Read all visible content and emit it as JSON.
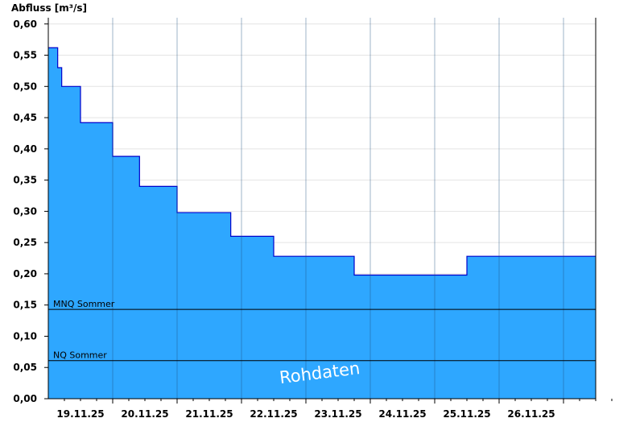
{
  "chart_data": {
    "type": "area",
    "title": "",
    "ylabel": "Abfluss [m³/s]",
    "xlabel": "",
    "ylim": [
      0,
      0.61
    ],
    "xlim": [
      "18.11.25 12:00",
      "26.11.25 24:00"
    ],
    "yticks": [
      "0,00",
      "0,05",
      "0,10",
      "0,15",
      "0,20",
      "0,25",
      "0,30",
      "0,35",
      "0,40",
      "0,45",
      "0,50",
      "0,55",
      "0,60"
    ],
    "ytick_values": [
      0,
      0.05,
      0.1,
      0.15,
      0.2,
      0.25,
      0.3,
      0.35,
      0.4,
      0.45,
      0.5,
      0.55,
      0.6
    ],
    "xticks": [
      "19.11.25",
      "20.11.25",
      "21.11.25",
      "22.11.25",
      "23.11.25",
      "24.11.25",
      "25.11.25",
      "26.11.25"
    ],
    "grid": true,
    "fill_color": "#2ea7ff",
    "line_color": "#0000cc",
    "series": [
      {
        "x": [
          "18.11.25 12:00",
          "18.11.25 15:00",
          "18.11.25 15:30",
          "18.11.25 17:00",
          "18.11.25 23:00",
          "19.11.25 00:00",
          "19.11.25 05:00",
          "19.11.25 06:00",
          "19.11.25 12:00",
          "19.11.25 18:00",
          "19.11.25 20:00",
          "19.11.25 22:00",
          "20.11.25 00:00",
          "20.11.25 06:00",
          "20.11.25 12:00",
          "20.11.25 18:00",
          "20.11.25 20:00",
          "21.11.25 00:00",
          "21.11.25 06:00",
          "21.11.25 08:00",
          "21.11.25 12:00",
          "21.11.25 18:00",
          "21.11.25 20:00",
          "22.11.25 00:00",
          "22.11.25 06:00",
          "22.11.25 10:00",
          "22.11.25 12:00",
          "22.11.25 18:00",
          "23.11.25 00:00",
          "23.11.25 06:00",
          "23.11.25 12:00",
          "23.11.25 18:00",
          "24.11.25 00:00",
          "24.11.25 06:00",
          "24.11.25 12:00",
          "24.11.25 18:00",
          "25.11.25 00:00",
          "25.11.25 06:00",
          "25.11.25 12:00",
          "25.11.25 18:00",
          "26.11.25 00:00",
          "26.11.25 06:00",
          "26.11.25 12:00",
          "26.11.25 18:00",
          "26.11.25 24:00"
        ],
        "values": [
          0.562,
          0.562,
          0.53,
          0.5,
          0.5,
          0.442,
          0.442,
          0.442,
          0.388,
          0.388,
          0.388,
          0.34,
          0.34,
          0.34,
          0.298,
          0.298,
          0.298,
          0.298,
          0.298,
          0.26,
          0.26,
          0.26,
          0.26,
          0.228,
          0.228,
          0.228,
          0.228,
          0.228,
          0.228,
          0.198,
          0.198,
          0.198,
          0.198,
          0.198,
          0.198,
          0.198,
          0.228,
          0.228,
          0.228,
          0.228,
          0.228,
          0.228,
          0.228,
          0.228,
          0.228
        ]
      }
    ],
    "thresholds": [
      {
        "label": "MNQ Sommer",
        "value": 0.143
      },
      {
        "label": "NQ Sommer",
        "value": 0.061
      }
    ],
    "watermark": "Rohdaten"
  }
}
